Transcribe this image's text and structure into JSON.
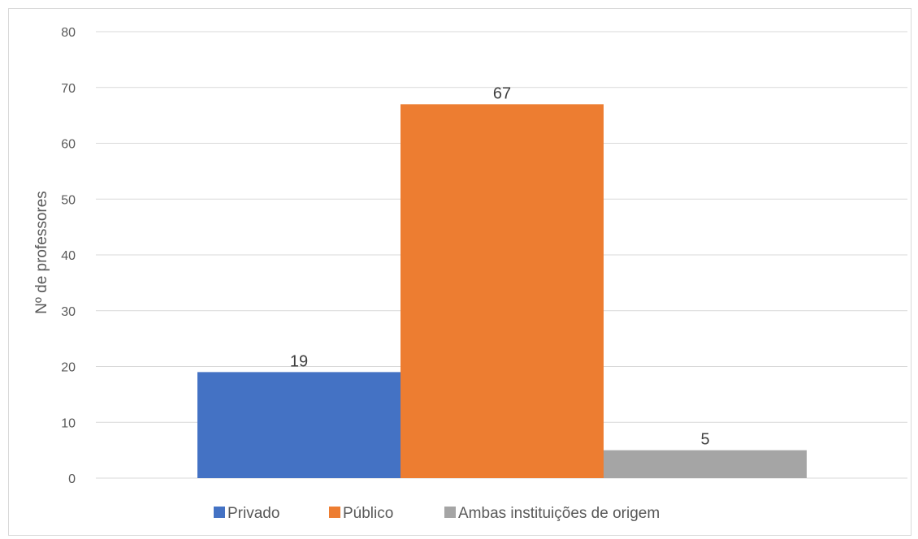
{
  "chart_data": {
    "type": "bar",
    "title": "",
    "xlabel": "",
    "ylabel": "Nº de professores",
    "ylim": [
      0,
      80
    ],
    "yticks": [
      0,
      10,
      20,
      30,
      40,
      50,
      60,
      70,
      80
    ],
    "grid": true,
    "legend_position": "bottom",
    "categories": [
      ""
    ],
    "series": [
      {
        "name": "Privado",
        "values": [
          19
        ],
        "color": "#4472c4"
      },
      {
        "name": "Público",
        "values": [
          67
        ],
        "color": "#ed7d31"
      },
      {
        "name": "Ambas instituições de origem",
        "values": [
          5
        ],
        "color": "#a5a5a5"
      }
    ]
  }
}
